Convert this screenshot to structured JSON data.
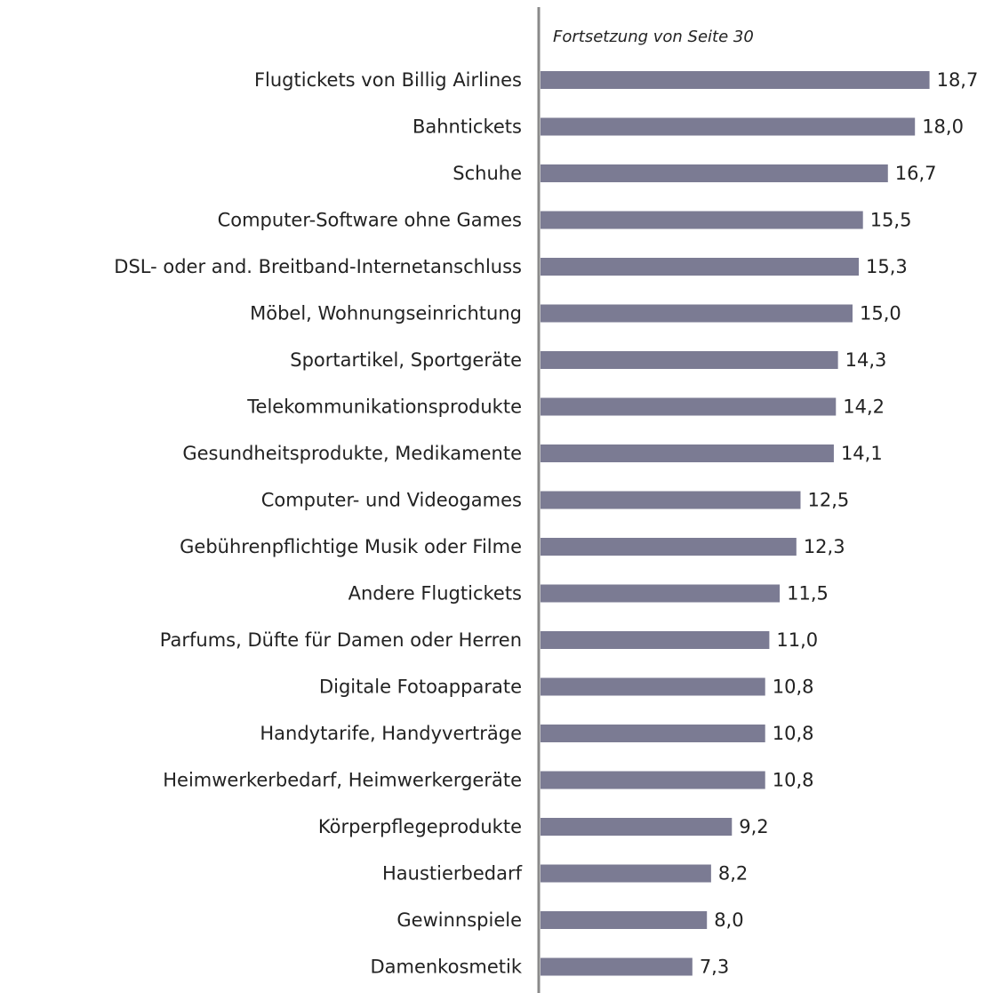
{
  "chart_data": {
    "type": "hbar",
    "annotation": "Fortsetzung von Seite 30",
    "categories": [
      "Flugtickets von Billig Airlines",
      "Bahntickets",
      "Schuhe",
      "Computer-Software ohne Games",
      "DSL- oder and. Breitband-Internetanschluss",
      "Möbel, Wohnungseinrichtung",
      "Sportartikel, Sportgeräte",
      "Telekommunikationsprodukte",
      "Gesundheitsprodukte, Medikamente",
      "Computer- und Videogames",
      "Gebührenpflichtige Musik oder Filme",
      "Andere Flugtickets",
      "Parfums, Düfte für Damen oder Herren",
      "Digitale Fotoapparate",
      "Handytarife, Handyverträge",
      "Heimwerkerbedarf, Heimwerkergeräte",
      "Körperpflegeprodukte",
      "Haustierbedarf",
      "Gewinnspiele",
      "Damenkosmetik"
    ],
    "values": [
      18.7,
      18.0,
      16.7,
      15.5,
      15.3,
      15.0,
      14.3,
      14.2,
      14.1,
      12.5,
      12.3,
      11.5,
      11.0,
      10.8,
      10.8,
      10.8,
      9.2,
      8.2,
      8.0,
      7.3
    ],
    "value_labels": [
      "18,7",
      "18,0",
      "16,7",
      "15,5",
      "15,3",
      "15,0",
      "14,3",
      "14,2",
      "14,1",
      "12,5",
      "12,3",
      "11,5",
      "11,0",
      "10,8",
      "10,8",
      "10,8",
      "9,2",
      "8,2",
      "8,0",
      "7,3"
    ],
    "color": "#7b7b93",
    "xlim": [
      0,
      20
    ]
  }
}
